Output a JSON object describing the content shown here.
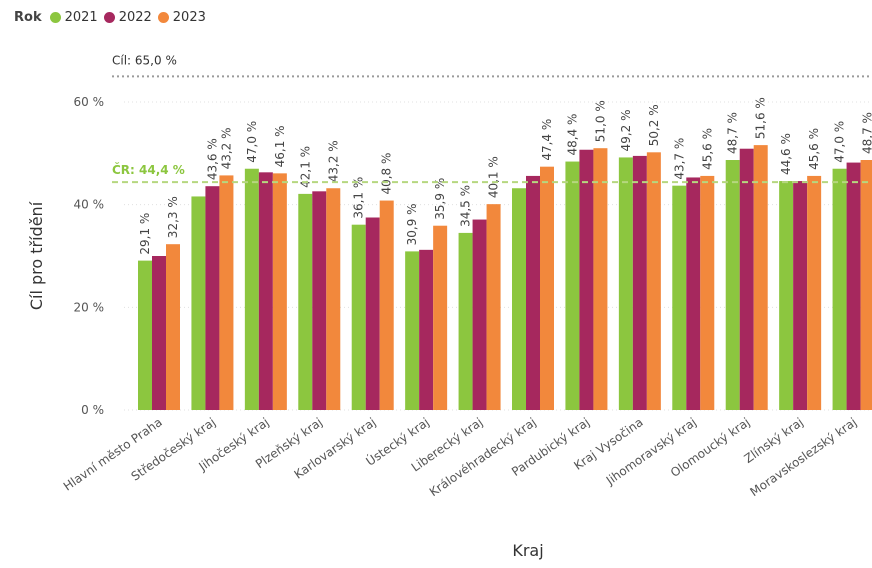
{
  "chart_data": {
    "type": "bar",
    "title": "",
    "xlabel": "Kraj",
    "ylabel": "Cíl pro třídění",
    "ylim": [
      0,
      65
    ],
    "y_ticks": [
      "0 %",
      "20 %",
      "40 %",
      "60 %"
    ],
    "y_tick_values": [
      0,
      20,
      40,
      60
    ],
    "legend_title": "Rok",
    "legend_placement": "top-left",
    "categories": [
      "Hlavní město Praha",
      "Středočeský kraj",
      "Jihočeský kraj",
      "Plzeňský kraj",
      "Karlovarský kraj",
      "Ústecký kraj",
      "Liberecký kraj",
      "Královéhradecký kraj",
      "Pardubický kraj",
      "Kraj Vysočina",
      "Jihomoravský kraj",
      "Olomoucký kraj",
      "Zlínský kraj",
      "Moravskoslezský kraj"
    ],
    "series": [
      {
        "name": "2021",
        "color": "#8CC63F",
        "values": [
          29.1,
          41.6,
          47.0,
          42.1,
          36.1,
          30.9,
          34.5,
          43.2,
          48.4,
          49.2,
          43.7,
          48.7,
          44.6,
          47.0
        ],
        "labels": [
          "29,1 %",
          "",
          "47,0 %",
          "42,1 %",
          "36,1 %",
          "30,9 %",
          "34,5 %",
          "",
          "48,4 %",
          "49,2 %",
          "43,7 %",
          "48,7 %",
          "44,6 %",
          "47,0 %"
        ]
      },
      {
        "name": "2022",
        "color": "#A6285E",
        "values": [
          30.0,
          43.6,
          46.3,
          42.6,
          37.5,
          31.2,
          37.1,
          45.6,
          50.7,
          49.5,
          45.3,
          50.9,
          44.6,
          48.2
        ],
        "labels": [
          "",
          "43,6 %",
          "",
          "",
          "",
          "",
          "",
          "",
          "",
          "",
          "",
          "",
          "",
          ""
        ]
      },
      {
        "name": "2023",
        "color": "#F2883C",
        "values": [
          32.3,
          45.7,
          46.1,
          43.2,
          40.8,
          35.9,
          40.1,
          47.4,
          51.0,
          50.2,
          45.6,
          51.6,
          45.6,
          48.7
        ],
        "labels": [
          "32,3 %",
          "",
          "46,1 %",
          "43,2 %",
          "40,8 %",
          "35,9 %",
          "40,1 %",
          "47,4 %",
          "51,0 %",
          "50,2 %",
          "45,6 %",
          "51,6 %",
          "45,6 %",
          "48,7 %"
        ]
      }
    ],
    "extra_labels": [
      "43,2 %"
    ],
    "reference_lines": [
      {
        "label": "Cíl: 65,0 %",
        "value": 65.0,
        "color": "#9a9a9a",
        "style": "dotted"
      },
      {
        "label": "ČR: 44,4 %",
        "value": 44.4,
        "color": "#B5D77F",
        "label_color": "#8CC63F",
        "style": "dashed"
      }
    ]
  }
}
